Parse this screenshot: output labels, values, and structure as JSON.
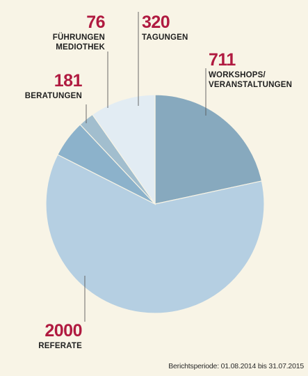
{
  "chart_data": {
    "type": "pie",
    "slices": [
      {
        "value": 711,
        "label": "WORKSHOPS/ VERANSTALTUNGEN",
        "color": "#87a9be"
      },
      {
        "value": 2000,
        "label": "REFERATE",
        "color": "#b5cfe2"
      },
      {
        "value": 181,
        "label": "BERATUNGEN",
        "color": "#8cb2cb"
      },
      {
        "value": 76,
        "label": "FÜHRUNGEN MEDIOTHEK",
        "color": "#a2bece"
      },
      {
        "value": 320,
        "label": "TAGUNGEN",
        "color": "#e2ecf3"
      }
    ],
    "number_color": "#b01a40",
    "footnote": "Berichtsperiode: 01.08.2014 bis 31.07.2015"
  }
}
